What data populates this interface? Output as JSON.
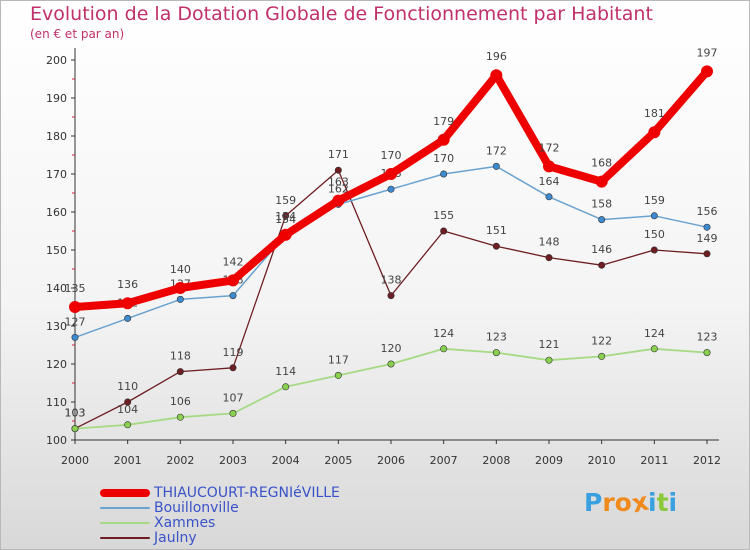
{
  "header": {
    "title": "Evolution de la Dotation Globale de Fonctionnement par Habitant",
    "subtitle": "(en € et par an)"
  },
  "logo": {
    "text": "Proxiti",
    "letters": [
      {
        "ch": "P",
        "color": "#3aa0e0"
      },
      {
        "ch": "r",
        "color": "#f08a1c"
      },
      {
        "ch": "o",
        "color": "#f08a1c"
      },
      {
        "ch": "x",
        "color": "#f08a1c"
      },
      {
        "ch": "i",
        "color": "#3aa0e0"
      },
      {
        "ch": "t",
        "color": "#8cc83c"
      },
      {
        "ch": "i",
        "color": "#3aa0e0"
      }
    ]
  },
  "chart_data": {
    "type": "line",
    "x": [
      2000,
      2001,
      2002,
      2003,
      2004,
      2005,
      2006,
      2007,
      2008,
      2009,
      2010,
      2011,
      2012
    ],
    "ylim": [
      100,
      200
    ],
    "yticks": [
      100,
      110,
      120,
      130,
      140,
      150,
      160,
      170,
      180,
      190,
      200
    ],
    "grid": false,
    "legend_position": "bottom-left",
    "series": [
      {
        "name": "Jaulny",
        "color": "#6e1e22",
        "point_color": "#6e1e22",
        "width": 1.3,
        "marker": 3.2,
        "values": [
          103,
          110,
          118,
          119,
          159,
          171,
          138,
          155,
          151,
          148,
          146,
          150,
          149
        ],
        "label_offset": [
          -12,
          -12,
          -12,
          -12,
          -12,
          -12,
          -12,
          -12,
          -12,
          -12,
          -12,
          -12,
          -12
        ]
      },
      {
        "name": "Xammes",
        "color": "#a6da84",
        "point_color": "#8ad050",
        "width": 1.8,
        "marker": 3.2,
        "values": [
          103,
          104,
          106,
          107,
          114,
          117,
          120,
          124,
          123,
          121,
          122,
          124,
          123
        ],
        "label_offset": [
          -12,
          -12,
          -12,
          -12,
          -12,
          -12,
          -12,
          -12,
          -12,
          -12,
          -12,
          -12,
          -12
        ]
      },
      {
        "name": "Bouillonville",
        "color": "#6aa2cf",
        "point_color": "#3c8ad0",
        "width": 1.5,
        "marker": 3.2,
        "values": [
          127,
          132,
          137,
          138,
          154,
          162,
          166,
          170,
          172,
          164,
          158,
          159,
          156
        ],
        "label_offset": [
          -12,
          -12,
          -12,
          -12,
          -12,
          -12,
          -12,
          -12,
          -12,
          -12,
          -12,
          -12,
          -12
        ]
      },
      {
        "name": "THIAUCOURT-REGNIéVILLE",
        "color": "#ee0000",
        "point_color": "#ee0000",
        "width": 8,
        "marker": 6,
        "values": [
          135,
          136,
          140,
          142,
          154,
          163,
          170,
          179,
          196,
          172,
          168,
          181,
          197
        ],
        "label_offset": [
          -15,
          -15,
          -15,
          -15,
          -15,
          -15,
          -15,
          -15,
          -15,
          -15,
          -15,
          -15,
          -15
        ]
      }
    ],
    "legend": [
      {
        "name": "THIAUCOURT-REGNIéVILLE",
        "color": "#ee0000",
        "thickness": 8
      },
      {
        "name": "Bouillonville",
        "color": "#6aa2cf",
        "thickness": 2
      },
      {
        "name": "Xammes",
        "color": "#a6da84",
        "thickness": 2
      },
      {
        "name": "Jaulny",
        "color": "#6e1e22",
        "thickness": 2
      }
    ]
  }
}
